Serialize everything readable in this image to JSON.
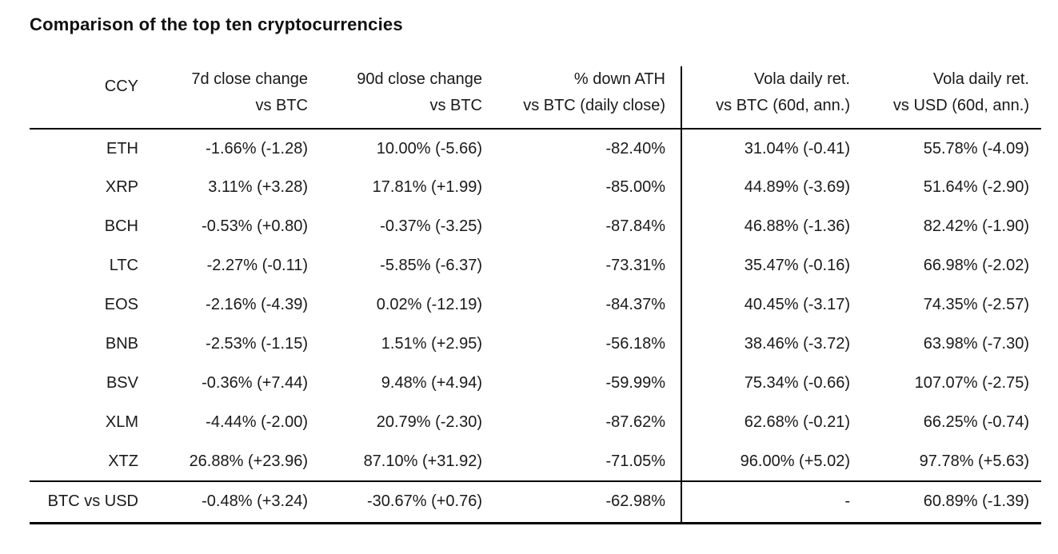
{
  "title": "Comparison of the top ten cryptocurrencies",
  "colors": {
    "background": "#ffffff",
    "text": "#1a1a1a",
    "rule": "#000000"
  },
  "chart_data": {
    "type": "table",
    "title": "Comparison of the top ten cryptocurrencies",
    "layout": {
      "alignment": "right",
      "vertical_divider_after_column": 3,
      "rules": [
        "below-header",
        "above-footer-row",
        "bottom"
      ]
    },
    "columns": [
      {
        "label": "CCY"
      },
      {
        "line1": "7d close change",
        "line2": "vs BTC"
      },
      {
        "line1": "90d close change",
        "line2": "vs BTC"
      },
      {
        "line1": "% down ATH",
        "line2": "vs BTC (daily close)"
      },
      {
        "line1": "Vola daily ret.",
        "line2": "vs BTC (60d, ann.)"
      },
      {
        "line1": "Vola daily ret.",
        "line2": "vs USD (60d, ann.)"
      }
    ],
    "rows": [
      [
        "ETH",
        "-1.66% (-1.28)",
        "10.00% (-5.66)",
        "-82.40%",
        "31.04% (-0.41)",
        "55.78% (-4.09)"
      ],
      [
        "XRP",
        "3.11% (+3.28)",
        "17.81% (+1.99)",
        "-85.00%",
        "44.89% (-3.69)",
        "51.64% (-2.90)"
      ],
      [
        "BCH",
        "-0.53% (+0.80)",
        "-0.37% (-3.25)",
        "-87.84%",
        "46.88% (-1.36)",
        "82.42% (-1.90)"
      ],
      [
        "LTC",
        "-2.27% (-0.11)",
        "-5.85% (-6.37)",
        "-73.31%",
        "35.47% (-0.16)",
        "66.98% (-2.02)"
      ],
      [
        "EOS",
        "-2.16% (-4.39)",
        "0.02% (-12.19)",
        "-84.37%",
        "40.45% (-3.17)",
        "74.35% (-2.57)"
      ],
      [
        "BNB",
        "-2.53% (-1.15)",
        "1.51% (+2.95)",
        "-56.18%",
        "38.46% (-3.72)",
        "63.98% (-7.30)"
      ],
      [
        "BSV",
        "-0.36% (+7.44)",
        "9.48% (+4.94)",
        "-59.99%",
        "75.34% (-0.66)",
        "107.07% (-2.75)"
      ],
      [
        "XLM",
        "-4.44% (-2.00)",
        "20.79% (-2.30)",
        "-87.62%",
        "62.68% (-0.21)",
        "66.25% (-0.74)"
      ],
      [
        "XTZ",
        "26.88% (+23.96)",
        "87.10% (+31.92)",
        "-71.05%",
        "96.00% (+5.02)",
        "97.78% (+5.63)"
      ],
      [
        "BTC vs USD",
        "-0.48% (+3.24)",
        "-30.67% (+0.76)",
        "-62.98%",
        "-",
        "60.89% (-1.39)"
      ]
    ]
  }
}
